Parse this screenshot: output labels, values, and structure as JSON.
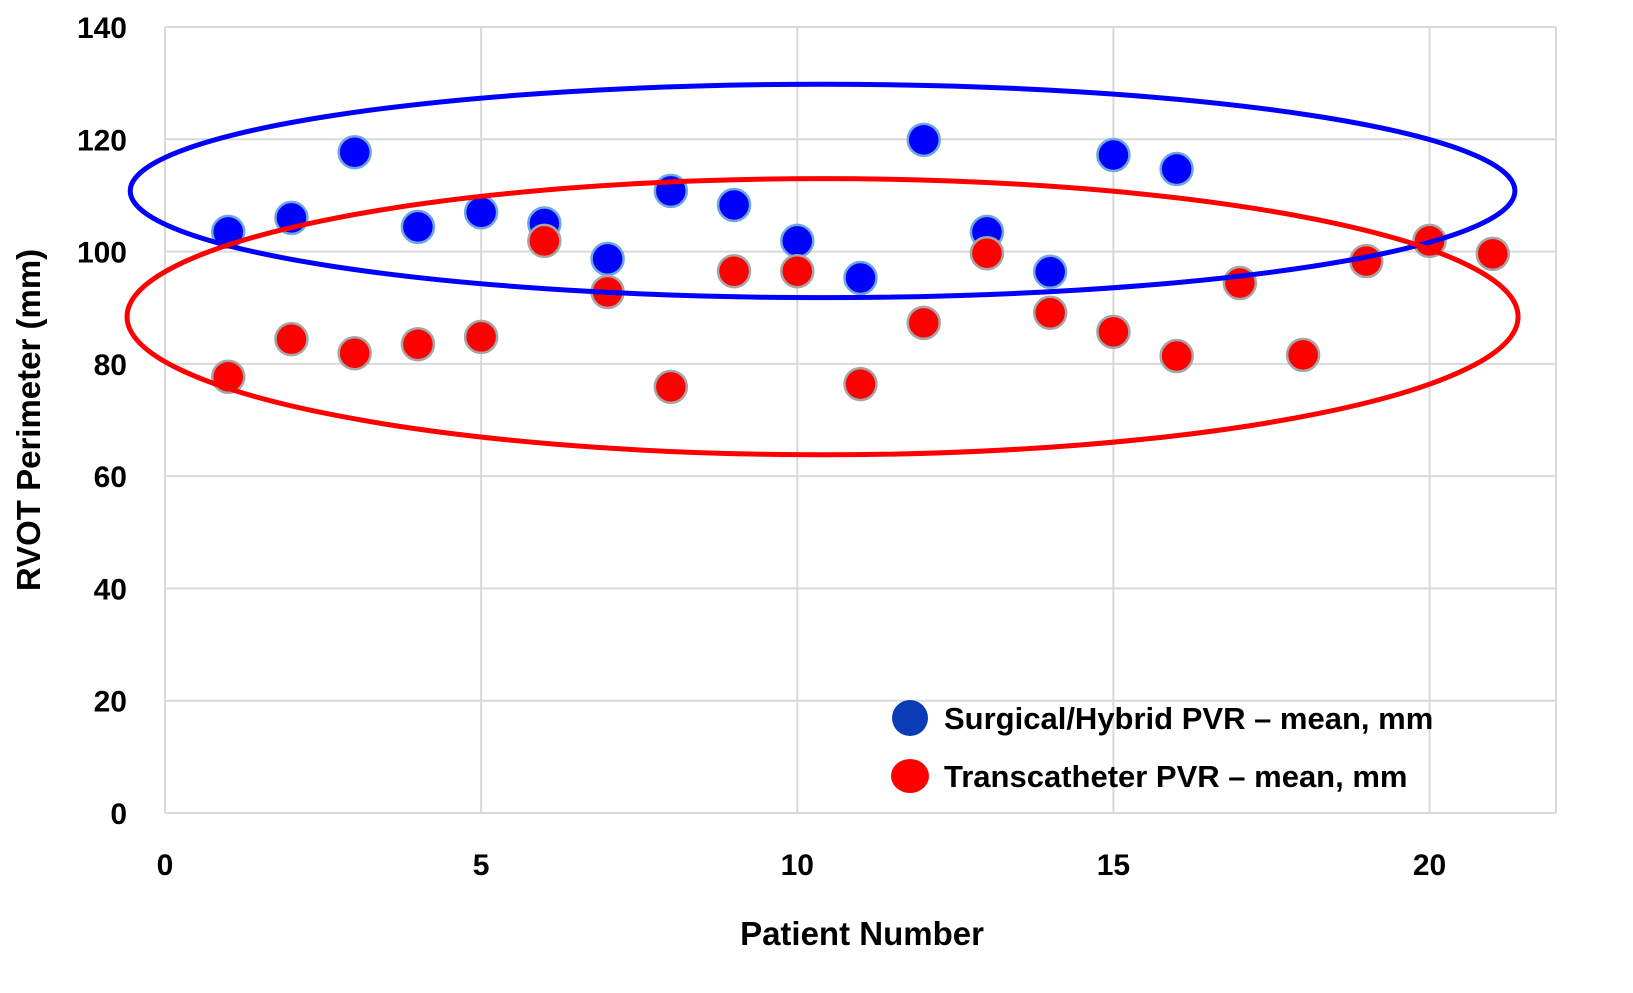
{
  "chart_data": {
    "type": "scatter",
    "title": "",
    "xlabel": "Patient Number",
    "ylabel": "RVOT Perimeter (mm)",
    "xlim": [
      0,
      22
    ],
    "ylim": [
      0,
      140
    ],
    "xticks": [
      0,
      5,
      10,
      15,
      20
    ],
    "yticks": [
      0,
      20,
      40,
      60,
      80,
      100,
      120,
      140
    ],
    "grid": true,
    "legend_position": "bottom-right",
    "series": [
      {
        "name": "Surgical/Hybrid PVR – mean, mm",
        "color": "#0000ff",
        "edge_color": "#6fa8dc",
        "legend_color": "#0a3db5",
        "x": [
          1,
          2,
          3,
          4,
          5,
          6,
          7,
          8,
          9,
          10,
          11,
          12,
          13,
          14,
          15,
          16
        ],
        "y": [
          103.5,
          106,
          117.7,
          104.4,
          107,
          105,
          98.7,
          110.8,
          108.3,
          101.9,
          95.3,
          119.9,
          103.5,
          96.4,
          117.2,
          114.7
        ]
      },
      {
        "name": "Transcatheter PVR – mean, mm",
        "color": "#ff0000",
        "edge_color": "#a6a6a6",
        "legend_color": "#ff0000",
        "x": [
          1,
          2,
          3,
          4,
          5,
          6,
          7,
          8,
          9,
          10,
          11,
          12,
          13,
          14,
          15,
          16,
          17,
          18,
          19,
          20,
          21
        ],
        "y": [
          77.7,
          84.4,
          81.9,
          83.5,
          84.8,
          101.9,
          92.8,
          75.9,
          96.5,
          96.5,
          76.4,
          87.3,
          99.7,
          89.1,
          85.7,
          81.4,
          94.4,
          81.6,
          98.3,
          101.9,
          99.6
        ]
      }
    ],
    "annotations": [
      {
        "shape": "ellipse",
        "color": "#0000ff",
        "center": [
          10.4,
          110.8
        ],
        "radius_x": 10.95,
        "radius_y": 19
      },
      {
        "shape": "ellipse",
        "color": "#ff0000",
        "center": [
          10.4,
          88.4
        ],
        "radius_x": 11,
        "radius_y": 24.6
      }
    ]
  }
}
